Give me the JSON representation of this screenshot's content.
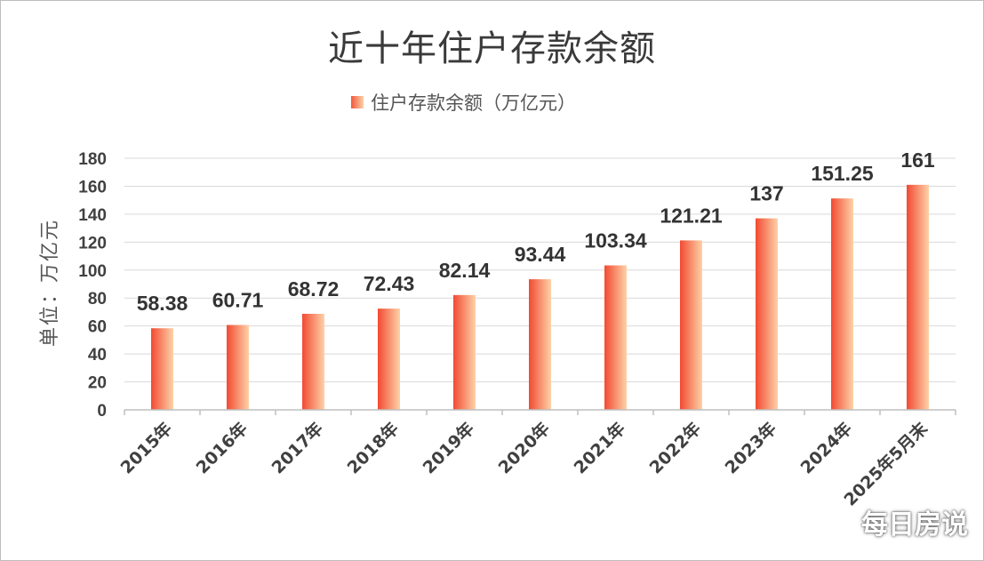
{
  "chart_data": {
    "type": "bar",
    "title": "近十年住户存款余额",
    "legend": "住户存款余额（万亿元）",
    "ylabel": "单位：万亿元",
    "categories": [
      "2015年",
      "2016年",
      "2017年",
      "2018年",
      "2019年",
      "2020年",
      "2021年",
      "2022年",
      "2023年",
      "2024年",
      "2025年5月末"
    ],
    "series": [
      {
        "name": "住户存款余额（万亿元）",
        "values": [
          58.38,
          60.71,
          68.72,
          72.43,
          82.14,
          93.44,
          103.34,
          121.21,
          137,
          151.25,
          161
        ]
      }
    ],
    "data_labels": [
      "58.38",
      "60.71",
      "68.72",
      "72.43",
      "82.14",
      "93.44",
      "103.34",
      "121.21",
      "137",
      "151.25",
      "161"
    ],
    "yticks": [
      0,
      20,
      40,
      60,
      80,
      100,
      120,
      140,
      160,
      180
    ],
    "ylim": [
      0,
      180
    ],
    "grid": true,
    "legend_position": "top-center",
    "colors": {
      "bar_dark": "#f24a32",
      "bar_light": "#fdd2a8",
      "grid": "#d9d9d9",
      "axis_text": "#404040"
    }
  },
  "watermark": "每日房说"
}
